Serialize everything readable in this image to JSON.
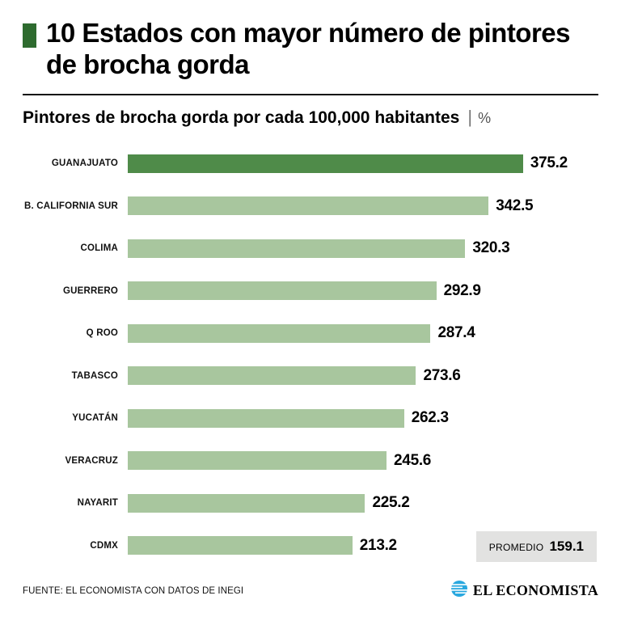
{
  "header": {
    "title": "10 Estados con mayor número de pintores de brocha gorda",
    "subtitle": "Pintores de brocha gorda por cada 100,000 habitantes",
    "separator": "|",
    "unit": "%"
  },
  "colors": {
    "accent_square": "#2e6b2f",
    "highlight_bar": "#4f8b49",
    "bar": "#a8c69e",
    "average_box_bg": "#e2e2e1",
    "brand_blue": "#29a8df"
  },
  "chart_data": {
    "type": "bar",
    "orientation": "horizontal",
    "title": "10 Estados con mayor número de pintores de brocha gorda",
    "subtitle": "Pintores de brocha gorda por cada 100,000 habitantes | %",
    "xlabel": "",
    "ylabel": "",
    "max_value": 375.2,
    "highlight_color": "#4f8b49",
    "bar_color": "#a8c69e",
    "rows": [
      {
        "label": "GUANAJUATO",
        "value": 375.2,
        "value_label": "375.2"
      },
      {
        "label": "B. CALIFORNIA SUR",
        "value": 342.5,
        "value_label": "342.5"
      },
      {
        "label": "COLIMA",
        "value": 320.3,
        "value_label": "320.3"
      },
      {
        "label": "GUERRERO",
        "value": 292.9,
        "value_label": "292.9"
      },
      {
        "label": "Q ROO",
        "value": 287.4,
        "value_label": "287.4"
      },
      {
        "label": "TABASCO",
        "value": 273.6,
        "value_label": "273.6"
      },
      {
        "label": "YUCATÁN",
        "value": 262.3,
        "value_label": "262.3"
      },
      {
        "label": "VERACRUZ",
        "value": 245.6,
        "value_label": "245.6"
      },
      {
        "label": "NAYARIT",
        "value": 225.2,
        "value_label": "225.2"
      },
      {
        "label": "CDMX",
        "value": 213.2,
        "value_label": "213.2"
      }
    ],
    "average": {
      "label": "PROMEDIO",
      "value": 159.1,
      "value_label": "159.1"
    }
  },
  "footer": {
    "source": "FUENTE: EL ECONOMISTA CON DATOS DE INEGI",
    "brand": "EL ECONOMISTA"
  }
}
